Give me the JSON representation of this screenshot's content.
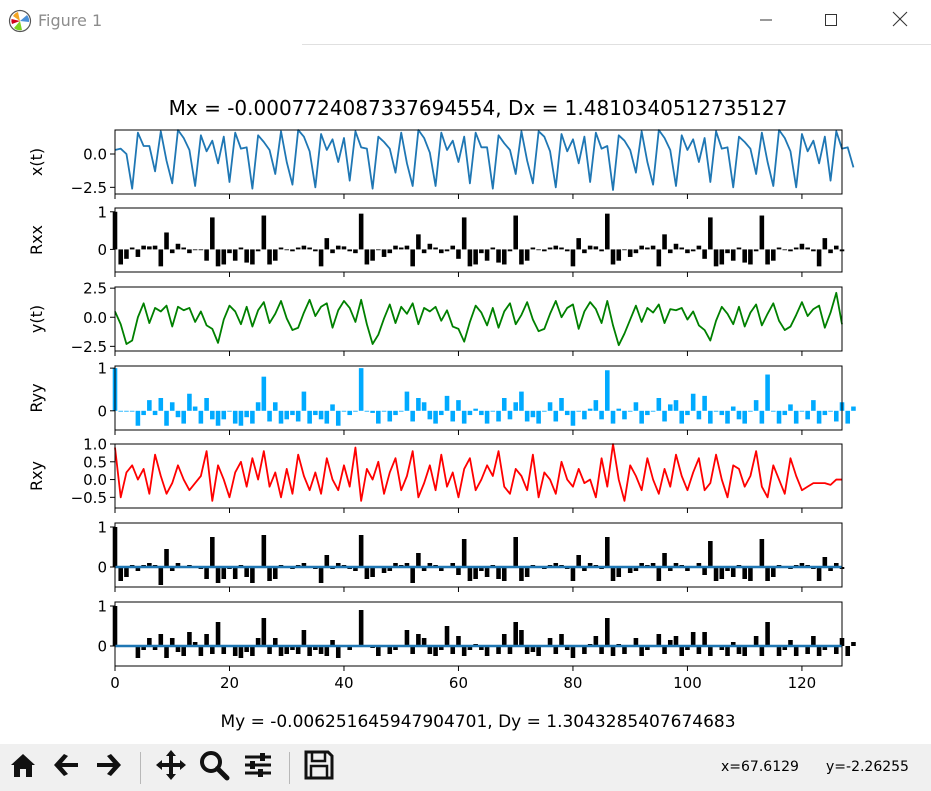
{
  "window": {
    "title": "Figure 1",
    "controls": [
      "minimize",
      "maximize",
      "close"
    ]
  },
  "toolbar": {
    "buttons": [
      "home-icon",
      "back-icon",
      "forward-icon",
      "pan-icon",
      "zoom-icon",
      "configure-subplots-icon",
      "save-icon"
    ],
    "coord_x": "x=67.6129",
    "coord_y": "y=-2.26255"
  },
  "figure": {
    "title": "Mx = -0.0007724087337694554, Dx = 1.4810340512735127",
    "xlabel": "My = -0.006251645947904701, Dy = 1.3043285407674683",
    "xticks": [
      "0",
      "20",
      "40",
      "60",
      "80",
      "100",
      "120"
    ]
  },
  "chart_data": [
    {
      "type": "line",
      "ylabel": "x(t)",
      "color": "#1f77b4",
      "xlim": [
        0,
        127
      ],
      "ylim": [
        -3.0,
        1.8
      ],
      "yticks": [
        "0.0",
        "−2.5"
      ],
      "values": [
        0.3,
        0.4,
        0.0,
        -2.6,
        1.6,
        0.6,
        0.6,
        -1.3,
        1.7,
        -0.5,
        -2.2,
        1.8,
        1.2,
        0.3,
        -2.4,
        1.4,
        0.2,
        1.0,
        -0.7,
        1.3,
        -2.1,
        1.6,
        0.4,
        0.5,
        -2.6,
        1.4,
        0.9,
        0.3,
        -1.5,
        1.7,
        -0.6,
        -2.3,
        1.8,
        1.3,
        0.2,
        -2.5,
        1.5,
        0.3,
        1.1,
        -0.6,
        1.2,
        -2.0,
        1.7,
        0.5,
        0.4,
        -2.6,
        1.3,
        0.9,
        0.4,
        -1.4,
        1.6,
        -0.7,
        -2.4,
        1.8,
        1.2,
        0.1,
        -2.4,
        1.6,
        0.3,
        1.0,
        -0.6,
        1.3,
        -2.2,
        1.6,
        0.5,
        0.5,
        -2.6,
        1.4,
        0.8,
        0.3,
        -1.5,
        1.7,
        -0.5,
        -2.2,
        1.7,
        1.3,
        0.2,
        -2.5,
        1.5,
        0.2,
        1.1,
        -0.7,
        1.3,
        -2.1,
        1.6,
        0.4,
        0.6,
        -2.7,
        1.4,
        1.0,
        0.3,
        -1.4,
        1.7,
        -0.6,
        -2.3,
        1.8,
        1.2,
        0.3,
        -2.4,
        1.4,
        0.3,
        1.1,
        -0.6,
        1.2,
        -2.1,
        1.7,
        0.4,
        0.5,
        -2.5,
        1.3,
        0.9,
        0.4,
        -1.5,
        1.6,
        -0.6,
        -2.4,
        1.8,
        1.2,
        0.2,
        -2.5,
        1.5,
        0.2,
        1.0,
        -0.7,
        1.3,
        -2.0,
        1.7,
        0.4,
        0.5,
        -1.0
      ]
    },
    {
      "type": "bar",
      "ylabel": "Rxx",
      "color": "#000000",
      "xlim": [
        0,
        127
      ],
      "ylim": [
        -0.6,
        1.1
      ],
      "yticks": [
        "1",
        "0"
      ],
      "values": [
        1.0,
        -0.4,
        -0.25,
        0.05,
        -0.2,
        0.1,
        0.08,
        0.1,
        -0.45,
        0.45,
        -0.1,
        0.15,
        0.05,
        -0.1,
        0.0,
        0.0,
        -0.3,
        0.85,
        -0.45,
        -0.4,
        -0.1,
        -0.3,
        0.05,
        -0.35,
        -0.4,
        -0.05,
        0.9,
        -0.4,
        -0.3,
        0.05,
        0.0,
        -0.05,
        0.05,
        0.1,
        0.05,
        -0.05,
        -0.45,
        0.3,
        -0.1,
        0.1,
        0.08,
        -0.05,
        -0.1,
        0.95,
        -0.4,
        -0.3,
        0.0,
        -0.2,
        -0.1,
        0.1,
        0.05,
        0.1,
        -0.45,
        0.4,
        -0.1,
        0.15,
        0.05,
        -0.1,
        -0.05,
        0.1,
        -0.25,
        0.85,
        -0.45,
        -0.4,
        -0.1,
        -0.3,
        0.05,
        -0.35,
        -0.4,
        -0.05,
        0.9,
        -0.4,
        -0.3,
        0.05,
        0.0,
        -0.05,
        0.05,
        0.1,
        0.05,
        -0.05,
        -0.45,
        0.3,
        -0.1,
        0.1,
        0.08,
        -0.05,
        0.95,
        -0.4,
        -0.3,
        0.0,
        -0.2,
        -0.1,
        0.1,
        0.05,
        0.1,
        -0.45,
        0.4,
        -0.1,
        0.15,
        0.05,
        -0.1,
        -0.05,
        0.1,
        -0.25,
        0.85,
        -0.45,
        -0.4,
        -0.1,
        -0.3,
        0.05,
        -0.35,
        -0.4,
        -0.05,
        0.9,
        -0.4,
        -0.3,
        0.05,
        0.0,
        -0.05,
        0.05,
        0.15,
        0.05,
        -0.05,
        -0.45,
        0.3,
        -0.1,
        0.1,
        -0.05
      ]
    },
    {
      "type": "line",
      "ylabel": "y(t)",
      "color": "#008000",
      "xlim": [
        0,
        127
      ],
      "ylim": [
        -2.9,
        2.6
      ],
      "yticks": [
        "2.5",
        "0.0",
        "−2.5"
      ],
      "values": [
        0.5,
        -0.6,
        -2.3,
        -2.0,
        0.0,
        1.2,
        -0.5,
        0.8,
        0.5,
        1.0,
        -0.8,
        0.9,
        0.6,
        0.8,
        -0.4,
        0.5,
        -0.7,
        -1.0,
        -2.2,
        -0.2,
        1.0,
        0.5,
        -0.6,
        0.9,
        -0.8,
        0.6,
        1.3,
        -0.5,
        0.3,
        1.4,
        -0.1,
        -1.1,
        -0.9,
        0.4,
        1.5,
        0.1,
        0.9,
        1.2,
        -0.9,
        0.6,
        1.4,
        0.8,
        -0.4,
        1.5,
        -0.6,
        -2.3,
        -1.5,
        -0.1,
        1.1,
        -0.5,
        0.9,
        0.3,
        1.2,
        -0.6,
        0.8,
        0.5,
        0.9,
        -0.3,
        0.6,
        -0.8,
        -1.0,
        -2.1,
        -0.4,
        1.0,
        0.4,
        -0.7,
        0.8,
        -0.9,
        0.5,
        1.2,
        -0.6,
        0.2,
        1.3,
        -0.2,
        -1.2,
        -1.0,
        0.3,
        1.4,
        0.0,
        0.8,
        1.1,
        -1.0,
        0.5,
        1.3,
        0.7,
        -0.5,
        1.4,
        -0.7,
        -2.4,
        -1.4,
        -0.2,
        1.0,
        -0.4,
        0.8,
        0.4,
        1.1,
        -0.5,
        0.7,
        0.6,
        0.8,
        -0.2,
        0.5,
        -0.7,
        -1.1,
        -2.0,
        -0.3,
        0.9,
        0.3,
        -0.6,
        0.9,
        -0.8,
        0.4,
        1.1,
        -0.7,
        0.3,
        1.2,
        -0.3,
        -1.1,
        -0.8,
        0.2,
        1.3,
        0.1,
        0.7,
        1.0,
        -0.9,
        0.4,
        2.1,
        -0.6
      ]
    },
    {
      "type": "bar",
      "ylabel": "Ryy",
      "color": "#00aaff",
      "xlim": [
        0,
        127
      ],
      "ylim": [
        -0.45,
        1.05
      ],
      "yticks": [
        "1",
        "0"
      ],
      "values": [
        1.0,
        0.0,
        0.0,
        0.0,
        -0.35,
        -0.1,
        0.25,
        -0.1,
        0.3,
        -0.35,
        0.2,
        -0.15,
        -0.3,
        0.4,
        0.1,
        -0.3,
        0.3,
        -0.2,
        -0.35,
        -0.2,
        0.0,
        -0.3,
        -0.35,
        -0.15,
        -0.3,
        0.2,
        0.8,
        -0.25,
        0.2,
        -0.3,
        -0.2,
        -0.1,
        -0.25,
        0.45,
        -0.3,
        -0.1,
        -0.2,
        -0.3,
        0.15,
        -0.35,
        0.0,
        -0.1,
        0.0,
        1.0,
        0.0,
        -0.05,
        -0.3,
        0.0,
        -0.25,
        -0.1,
        0.0,
        0.45,
        -0.25,
        0.3,
        0.2,
        -0.2,
        -0.3,
        -0.1,
        0.35,
        -0.25,
        0.25,
        -0.3,
        -0.1,
        0.05,
        -0.1,
        -0.3,
        0.0,
        -0.25,
        0.3,
        -0.2,
        0.2,
        0.45,
        -0.25,
        -0.15,
        -0.3,
        0.0,
        0.2,
        -0.25,
        0.3,
        -0.1,
        -0.35,
        0.0,
        -0.2,
        0.05,
        0.25,
        -0.2,
        0.95,
        -0.3,
        0.05,
        -0.2,
        0.0,
        0.2,
        -0.3,
        -0.1,
        0.0,
        0.3,
        -0.25,
        0.15,
        0.25,
        -0.3,
        -0.1,
        0.4,
        -0.2,
        0.35,
        -0.3,
        0.0,
        -0.1,
        -0.3,
        0.1,
        -0.2,
        -0.3,
        0.0,
        0.25,
        -0.3,
        0.85,
        0.0,
        -0.3,
        -0.1,
        0.15,
        -0.3,
        0.0,
        -0.2,
        0.25,
        -0.3,
        -0.1,
        0.0,
        -0.25,
        0.2,
        -0.3,
        0.1
      ]
    },
    {
      "type": "line",
      "ylabel": "Rxy",
      "color": "#ff0000",
      "xlim": [
        0,
        127
      ],
      "ylim": [
        -0.8,
        1.0
      ],
      "yticks": [
        "1.0",
        "0.5",
        "0.0",
        "−0.5"
      ],
      "values": [
        0.9,
        -0.5,
        0.2,
        0.4,
        0.0,
        0.3,
        -0.4,
        0.7,
        0.1,
        -0.4,
        -0.1,
        0.4,
        0.0,
        -0.3,
        -0.1,
        0.1,
        0.8,
        -0.6,
        0.4,
        0.0,
        -0.5,
        0.2,
        0.5,
        -0.2,
        0.6,
        0.0,
        0.8,
        -0.2,
        0.2,
        -0.5,
        0.3,
        -0.4,
        0.7,
        0.1,
        -0.3,
        0.2,
        -0.4,
        0.6,
        0.0,
        -0.3,
        0.4,
        -0.2,
        0.9,
        -0.6,
        0.3,
        0.0,
        0.5,
        -0.4,
        0.2,
        0.6,
        -0.3,
        0.1,
        0.8,
        -0.5,
        -0.1,
        0.4,
        -0.3,
        0.7,
        -0.2,
        0.2,
        -0.5,
        0.3,
        0.6,
        -0.3,
        0.0,
        0.4,
        0.1,
        0.8,
        -0.2,
        -0.4,
        0.3,
        0.1,
        -0.3,
        0.7,
        -0.5,
        0.2,
        0.0,
        -0.4,
        0.5,
        0.0,
        -0.2,
        0.3,
        -0.1,
        0.0,
        -0.5,
        0.6,
        -0.2,
        1.0,
        0.0,
        -0.6,
        0.4,
        0.1,
        -0.3,
        0.6,
        0.0,
        -0.4,
        0.3,
        -0.2,
        0.7,
        0.1,
        -0.3,
        0.2,
        0.6,
        -0.3,
        -0.1,
        0.7,
        0.0,
        -0.5,
        0.4,
        0.3,
        -0.2,
        0.1,
        0.8,
        -0.2,
        -0.5,
        0.4,
        0.0,
        -0.4,
        0.6,
        0.1,
        -0.3,
        -0.2,
        -0.1,
        -0.1,
        -0.1,
        -0.15,
        0.0,
        0.0
      ]
    },
    {
      "type": "bar",
      "ylabel": "",
      "color": "#000000",
      "xlim": [
        0,
        127
      ],
      "ylim": [
        -0.5,
        1.1
      ],
      "yticks": [
        "1",
        "0"
      ],
      "overlay_line": {
        "color": "#1f77b4",
        "value": 0.0
      },
      "values": [
        1.0,
        -0.35,
        -0.25,
        0.05,
        -0.1,
        0.05,
        0.1,
        0.05,
        -0.45,
        0.45,
        -0.1,
        0.1,
        0.0,
        0.05,
        0.0,
        -0.05,
        -0.3,
        0.75,
        -0.4,
        -0.3,
        -0.05,
        -0.3,
        0.05,
        -0.25,
        -0.4,
        0.0,
        0.8,
        -0.35,
        -0.3,
        0.05,
        0.0,
        -0.05,
        0.05,
        0.1,
        0.0,
        -0.05,
        -0.4,
        0.3,
        -0.05,
        0.1,
        0.05,
        -0.05,
        -0.1,
        0.8,
        -0.3,
        -0.25,
        0.0,
        -0.15,
        -0.1,
        0.1,
        0.05,
        0.1,
        -0.4,
        0.35,
        -0.1,
        0.1,
        0.05,
        -0.1,
        0.0,
        0.1,
        -0.2,
        0.7,
        -0.35,
        -0.3,
        -0.1,
        -0.25,
        0.05,
        -0.3,
        -0.35,
        0.0,
        0.75,
        -0.35,
        -0.25,
        0.05,
        0.0,
        -0.05,
        0.05,
        0.1,
        0.05,
        -0.05,
        -0.35,
        0.3,
        -0.1,
        0.1,
        0.05,
        -0.05,
        0.75,
        -0.35,
        -0.25,
        0.0,
        -0.15,
        -0.1,
        0.1,
        0.05,
        0.1,
        -0.35,
        0.35,
        -0.1,
        0.1,
        0.05,
        -0.1,
        0.0,
        0.1,
        -0.2,
        0.65,
        -0.35,
        -0.3,
        -0.1,
        -0.25,
        0.05,
        -0.3,
        -0.35,
        0.0,
        0.7,
        -0.35,
        -0.25,
        0.05,
        0.0,
        -0.05,
        0.05,
        0.1,
        0.05,
        -0.05,
        -0.35,
        0.25,
        -0.1,
        0.1,
        -0.05
      ]
    },
    {
      "type": "bar",
      "ylabel": "",
      "color": "#000000",
      "xlim": [
        0,
        127
      ],
      "ylim": [
        -0.5,
        1.1
      ],
      "yticks": [
        "1",
        "0"
      ],
      "overlay_line": {
        "color": "#1f77b4",
        "value": 0.0
      },
      "values": [
        1.0,
        0.0,
        0.0,
        0.0,
        -0.3,
        -0.1,
        0.2,
        -0.1,
        0.3,
        -0.3,
        0.2,
        -0.15,
        -0.25,
        0.35,
        0.1,
        -0.25,
        0.3,
        -0.2,
        0.6,
        -0.2,
        0.0,
        -0.25,
        -0.3,
        -0.15,
        -0.25,
        0.2,
        0.7,
        -0.2,
        0.2,
        -0.25,
        -0.2,
        -0.1,
        -0.2,
        0.4,
        -0.25,
        -0.1,
        -0.2,
        -0.25,
        0.15,
        -0.3,
        0.0,
        -0.1,
        0.0,
        0.9,
        0.0,
        -0.05,
        -0.25,
        0.0,
        -0.2,
        -0.1,
        0.0,
        0.4,
        -0.2,
        0.3,
        0.2,
        -0.2,
        -0.25,
        -0.1,
        0.5,
        -0.2,
        0.25,
        -0.25,
        -0.1,
        0.05,
        -0.1,
        -0.25,
        0.0,
        -0.2,
        0.3,
        -0.2,
        0.6,
        0.4,
        -0.2,
        -0.15,
        -0.25,
        0.0,
        0.2,
        -0.2,
        0.3,
        -0.1,
        -0.3,
        0.0,
        -0.2,
        0.05,
        0.25,
        -0.2,
        0.7,
        -0.25,
        0.05,
        -0.2,
        0.0,
        0.2,
        -0.25,
        -0.1,
        0.0,
        0.3,
        -0.2,
        0.15,
        0.25,
        -0.25,
        -0.1,
        0.35,
        -0.2,
        0.35,
        -0.25,
        0.0,
        -0.1,
        -0.25,
        0.1,
        -0.2,
        -0.25,
        0.0,
        0.25,
        -0.25,
        0.6,
        0.0,
        -0.25,
        -0.1,
        0.15,
        -0.25,
        0.0,
        -0.2,
        0.25,
        -0.25,
        -0.1,
        0.0,
        -0.2,
        0.2,
        -0.25,
        0.1
      ]
    }
  ]
}
